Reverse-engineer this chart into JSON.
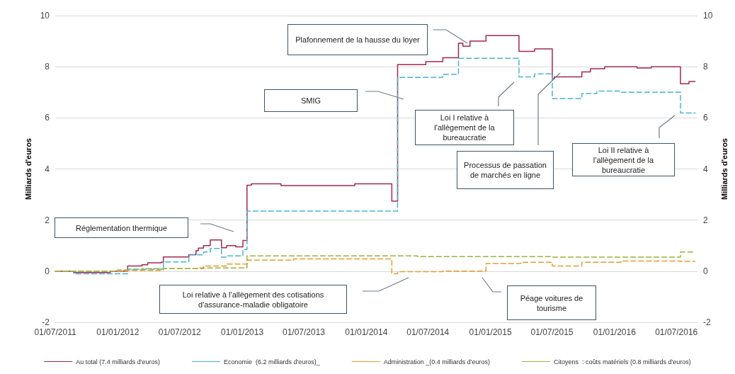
{
  "chart_data": {
    "type": "step",
    "ylabel": "Milliards d'euros",
    "y2label": "Milliards d'euros",
    "xlim": [
      "2011-07-01",
      "2016-09-01"
    ],
    "xticks": [
      {
        "value": "2011-07-01",
        "label": "01/07/2011"
      },
      {
        "value": "2012-01-01",
        "label": "01/01/2012"
      },
      {
        "value": "2012-07-01",
        "label": "01/07/2012"
      },
      {
        "value": "2013-01-01",
        "label": "01/01/2013"
      },
      {
        "value": "2013-07-01",
        "label": "01/07/2013"
      },
      {
        "value": "2014-01-01",
        "label": "01/01/2014"
      },
      {
        "value": "2014-07-01",
        "label": "01/07/2014"
      },
      {
        "value": "2015-01-01",
        "label": "01/01/2015"
      },
      {
        "value": "2015-07-01",
        "label": "01/07/2015"
      },
      {
        "value": "2016-01-01",
        "label": "01/01/2016"
      },
      {
        "value": "2016-07-01",
        "label": "01/07/2016"
      }
    ],
    "ylim": [
      -2,
      10
    ],
    "yticks": [
      -2,
      0,
      2,
      4,
      6,
      8,
      10
    ],
    "y2lim": [
      -2,
      10
    ],
    "y2ticks": [
      -2,
      0,
      2,
      4,
      6,
      8,
      10
    ],
    "grid": "y",
    "legend": "bottom",
    "marker": "none",
    "series": [
      {
        "name": "Au total (7.4 milliards d'euros)",
        "color": "#a3284f",
        "line_style": "solid",
        "x": [
          "2011-07-01",
          "2011-08-24",
          "2011-12-10",
          "2012-01-30",
          "2012-03-12",
          "2012-03-29",
          "2012-05-08",
          "2012-05-14",
          "2012-07-28",
          "2012-08-18",
          "2012-08-25",
          "2012-09-09",
          "2012-09-29",
          "2012-11-01",
          "2012-11-16",
          "2012-12-13",
          "2013-01-03",
          "2013-01-15",
          "2013-01-28",
          "2013-04-25",
          "2013-11-28",
          "2014-03-17",
          "2014-04-03",
          "2014-06-25",
          "2014-08-14",
          "2014-09-29",
          "2014-10-12",
          "2014-11-02",
          "2014-12-19",
          "2015-03-26",
          "2015-05-11",
          "2015-07-02",
          "2015-07-08",
          "2015-09-27",
          "2015-10-22",
          "2015-12-03",
          "2016-03-07",
          "2016-04-18",
          "2016-07-13",
          "2016-08-07",
          "2016-08-25"
        ],
        "values": [
          0,
          -0.05,
          0,
          0.2,
          0.25,
          0.33,
          0.35,
          0.56,
          0.65,
          0.8,
          0.9,
          1.0,
          1.22,
          0.92,
          1.0,
          0.95,
          1.2,
          3.36,
          3.42,
          3.35,
          3.42,
          2.74,
          8.08,
          8.2,
          8.35,
          8.92,
          8.8,
          9.0,
          9.22,
          8.6,
          8.7,
          7.53,
          7.6,
          7.8,
          7.92,
          8.0,
          7.95,
          8.0,
          7.33,
          7.42,
          7.42
        ]
      },
      {
        "name": "Economie  (6.2 milliards d'euros)_",
        "color": "#4bb4cf",
        "line_style": "dashed",
        "x": [
          "2011-07-01",
          "2011-08-24",
          "2012-01-30",
          "2012-05-14",
          "2012-07-28",
          "2012-09-09",
          "2012-09-29",
          "2012-11-01",
          "2012-11-16",
          "2013-01-03",
          "2013-01-15",
          "2014-04-03",
          "2014-08-14",
          "2014-09-29",
          "2015-03-26",
          "2015-05-11",
          "2015-07-02",
          "2015-09-27",
          "2015-11-10",
          "2016-01-20",
          "2016-07-13",
          "2016-08-25"
        ],
        "values": [
          0,
          -0.1,
          0.08,
          0.36,
          0.64,
          0.75,
          0.89,
          0.55,
          0.6,
          0.85,
          2.35,
          7.58,
          7.7,
          8.33,
          7.6,
          7.72,
          6.75,
          6.95,
          7.05,
          7.0,
          6.19,
          6.19
        ]
      },
      {
        "name": "Administration _(0.4 milliards d'euros)",
        "color": "#e89a2e",
        "line_style": "dashed",
        "x": [
          "2011-07-01",
          "2012-01-30",
          "2012-05-14",
          "2012-09-09",
          "2012-11-16",
          "2013-01-15",
          "2013-06-01",
          "2014-03-17",
          "2014-04-03",
          "2014-08-14",
          "2014-12-19",
          "2015-04-01",
          "2015-07-02",
          "2015-09-27",
          "2016-01-20",
          "2016-07-13",
          "2016-08-25"
        ],
        "values": [
          0,
          0.03,
          0.1,
          0.2,
          0.28,
          0.43,
          0.48,
          -0.1,
          -0.02,
          0.0,
          0.3,
          0.35,
          0.2,
          0.35,
          0.4,
          0.38,
          0.38
        ]
      },
      {
        "name": "Citoyens  : coûts matériels (0.8 milliards d'euros)",
        "color": "#9bb33a",
        "line_style": "dashed",
        "x": [
          "2011-07-01",
          "2012-01-01",
          "2012-03-12",
          "2012-08-25",
          "2013-01-15",
          "2014-06-01",
          "2015-07-02",
          "2016-07-13",
          "2016-08-25"
        ],
        "values": [
          0,
          0.05,
          0.1,
          0.13,
          0.6,
          0.57,
          0.55,
          0.75,
          0.75
        ]
      }
    ],
    "annotations": [
      "Réglementation thermique",
      "SMIG",
      "Plafonnement de la hausse du loyer",
      "Loi I relative à l'allègement de la bureaucratie",
      "Processus de passation de marchés en ligne",
      "Loi II relative à l'allègement de la bureaucratie",
      "Loi relative à l'allègement des cotisations d'assurance-maladie obligatoire",
      "Péage voitures de tourisme"
    ]
  }
}
